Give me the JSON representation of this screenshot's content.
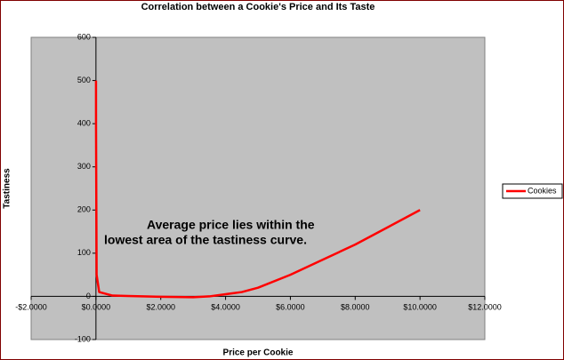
{
  "chart_data": {
    "type": "line",
    "title": "Correlation between a Cookie's Price and Its Taste",
    "x_label": "Price per Cookie",
    "y_label": "Tastiness",
    "annotation": [
      "Average price lies within the",
      "lowest area of the tastiness curve."
    ],
    "x": [
      0.002,
      0.0025,
      0.02,
      0.1,
      0.5,
      1,
      2,
      3,
      3.5,
      4,
      4.5,
      5,
      6,
      7,
      8,
      9,
      10
    ],
    "series": [
      {
        "name": "Cookies",
        "color": "#ff0000",
        "values": [
          500,
          400,
          50,
          10,
          2,
          1,
          -1,
          -2,
          0,
          5,
          10,
          20,
          50,
          85,
          120,
          160,
          200
        ]
      }
    ],
    "xlim": [
      -2,
      12
    ],
    "xticks": [
      {
        "value": -2,
        "label": "-$2.0000"
      },
      {
        "value": 0,
        "label": "$0.0000"
      },
      {
        "value": 2,
        "label": "$2.0000"
      },
      {
        "value": 4,
        "label": "$4.0000"
      },
      {
        "value": 6,
        "label": "$6.0000"
      },
      {
        "value": 8,
        "label": "$8.0000"
      },
      {
        "value": 10,
        "label": "$10.0000"
      },
      {
        "value": 12,
        "label": "$12.0000"
      }
    ],
    "ylim": [
      -100,
      600
    ],
    "yticks": [
      -100,
      0,
      100,
      200,
      300,
      400,
      500,
      600
    ],
    "grid": false,
    "legend": "right",
    "plot_background": "#c0c0c0"
  }
}
